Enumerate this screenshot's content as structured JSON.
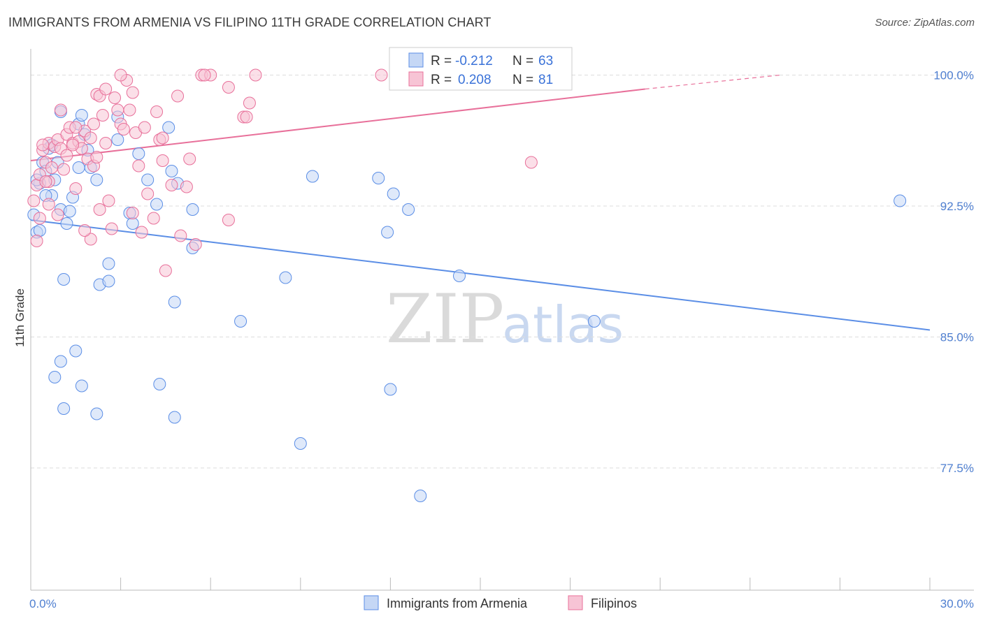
{
  "title": "IMMIGRANTS FROM ARMENIA VS FILIPINO 11TH GRADE CORRELATION CHART",
  "source": "Source: ZipAtlas.com",
  "colors": {
    "blue": "#5b8ee6",
    "blue_fill": "#c5d7f5",
    "pink": "#e8709a",
    "pink_fill": "#f7c4d5",
    "tick_text": "#4f7fd0",
    "grid": "#dddddd"
  },
  "chart_data": {
    "type": "scatter",
    "title": "IMMIGRANTS FROM ARMENIA VS FILIPINO 11TH GRADE CORRELATION CHART",
    "xlabel": "",
    "ylabel": "11th Grade",
    "xlim": [
      0,
      30
    ],
    "ylim": [
      70.5,
      101.5
    ],
    "x_tick_labels": [
      "0.0%",
      "30.0%"
    ],
    "y_ticks": [
      77.5,
      85.0,
      92.5,
      100.0
    ],
    "y_tick_labels": [
      "77.5%",
      "85.0%",
      "92.5%",
      "100.0%"
    ],
    "legend": [
      {
        "label": "R = ",
        "r": "-0.212",
        "n_label": "N = ",
        "n": "63"
      },
      {
        "label": "R = ",
        "r": "0.208",
        "n_label": "N = ",
        "n": "81"
      }
    ],
    "series": [
      {
        "name": "Immigrants from Armenia",
        "color": "#5b8ee6",
        "trend": {
          "x0": 0.0,
          "y0": 91.7,
          "x1": 30.0,
          "y1": 85.4
        },
        "points": [
          [
            0.2,
            91.0
          ],
          [
            0.3,
            93.8
          ],
          [
            0.4,
            95.0
          ],
          [
            0.5,
            94.5
          ],
          [
            0.6,
            95.8
          ],
          [
            0.7,
            96.0
          ],
          [
            0.7,
            93.1
          ],
          [
            0.8,
            94.0
          ],
          [
            0.9,
            95.0
          ],
          [
            1.0,
            97.9
          ],
          [
            1.0,
            92.3
          ],
          [
            1.1,
            88.3
          ],
          [
            1.2,
            91.5
          ],
          [
            1.3,
            92.2
          ],
          [
            1.4,
            93.0
          ],
          [
            1.5,
            84.2
          ],
          [
            1.6,
            97.2
          ],
          [
            1.6,
            94.7
          ],
          [
            1.7,
            97.7
          ],
          [
            1.8,
            96.6
          ],
          [
            1.9,
            95.7
          ],
          [
            2.0,
            94.7
          ],
          [
            2.2,
            94.0
          ],
          [
            2.3,
            88.0
          ],
          [
            2.6,
            88.2
          ],
          [
            2.6,
            89.2
          ],
          [
            2.9,
            96.3
          ],
          [
            2.9,
            97.6
          ],
          [
            3.3,
            92.1
          ],
          [
            3.4,
            91.5
          ],
          [
            3.6,
            95.5
          ],
          [
            3.9,
            94.0
          ],
          [
            4.2,
            92.6
          ],
          [
            4.6,
            97.0
          ],
          [
            4.7,
            94.5
          ],
          [
            4.9,
            93.8
          ],
          [
            4.8,
            87.0
          ],
          [
            5.4,
            92.3
          ],
          [
            5.4,
            90.1
          ],
          [
            7.0,
            85.9
          ],
          [
            8.5,
            88.4
          ],
          [
            9.4,
            94.2
          ],
          [
            11.6,
            94.1
          ],
          [
            12.1,
            93.2
          ],
          [
            12.6,
            92.3
          ],
          [
            11.9,
            91.0
          ],
          [
            14.3,
            88.5
          ],
          [
            18.8,
            85.9
          ],
          [
            29.0,
            92.8
          ],
          [
            0.3,
            91.1
          ],
          [
            0.8,
            82.7
          ],
          [
            1.0,
            83.6
          ],
          [
            1.1,
            80.9
          ],
          [
            1.7,
            82.2
          ],
          [
            2.2,
            80.6
          ],
          [
            4.3,
            82.3
          ],
          [
            4.8,
            80.4
          ],
          [
            9.0,
            78.9
          ],
          [
            12.0,
            82.0
          ],
          [
            13.0,
            75.9
          ],
          [
            0.1,
            92.0
          ],
          [
            0.5,
            93.1
          ],
          [
            0.2,
            94.0
          ]
        ]
      },
      {
        "name": "Filipinos",
        "color": "#e8709a",
        "trend": {
          "x0": 0.0,
          "y0": 95.1,
          "x1": 20.5,
          "y1": 99.2,
          "dash_x1": 25.0,
          "dash_y1": 100.0
        },
        "points": [
          [
            0.1,
            92.8
          ],
          [
            0.2,
            93.7
          ],
          [
            0.3,
            94.3
          ],
          [
            0.4,
            95.7
          ],
          [
            0.5,
            95.0
          ],
          [
            0.6,
            96.1
          ],
          [
            0.6,
            93.9
          ],
          [
            0.7,
            94.7
          ],
          [
            0.8,
            95.9
          ],
          [
            0.9,
            96.3
          ],
          [
            1.0,
            95.8
          ],
          [
            1.1,
            94.6
          ],
          [
            1.2,
            96.6
          ],
          [
            1.3,
            97.0
          ],
          [
            1.4,
            96.1
          ],
          [
            1.5,
            93.5
          ],
          [
            1.6,
            96.2
          ],
          [
            1.7,
            95.8
          ],
          [
            1.8,
            96.8
          ],
          [
            1.9,
            95.2
          ],
          [
            2.0,
            96.4
          ],
          [
            2.1,
            97.2
          ],
          [
            2.1,
            94.8
          ],
          [
            2.2,
            98.9
          ],
          [
            2.3,
            98.8
          ],
          [
            2.4,
            97.7
          ],
          [
            2.5,
            96.1
          ],
          [
            2.6,
            92.8
          ],
          [
            2.7,
            91.2
          ],
          [
            2.8,
            98.7
          ],
          [
            2.9,
            98.0
          ],
          [
            3.0,
            97.2
          ],
          [
            3.1,
            96.9
          ],
          [
            3.2,
            99.7
          ],
          [
            3.3,
            98.0
          ],
          [
            3.4,
            92.1
          ],
          [
            3.5,
            96.7
          ],
          [
            3.6,
            94.8
          ],
          [
            3.8,
            97.0
          ],
          [
            3.9,
            93.2
          ],
          [
            4.1,
            91.8
          ],
          [
            4.2,
            97.9
          ],
          [
            4.3,
            96.3
          ],
          [
            4.4,
            95.1
          ],
          [
            4.5,
            88.8
          ],
          [
            4.9,
            98.8
          ],
          [
            5.0,
            90.8
          ],
          [
            5.2,
            93.6
          ],
          [
            5.3,
            95.2
          ],
          [
            5.5,
            90.3
          ],
          [
            5.7,
            100.0
          ],
          [
            6.0,
            100.0
          ],
          [
            6.6,
            99.3
          ],
          [
            6.6,
            91.7
          ],
          [
            7.1,
            97.6
          ],
          [
            7.3,
            98.4
          ],
          [
            7.5,
            100.0
          ],
          [
            11.7,
            100.0
          ],
          [
            16.7,
            95.0
          ],
          [
            0.2,
            90.5
          ],
          [
            0.4,
            96.0
          ],
          [
            1.5,
            97.0
          ],
          [
            2.5,
            99.2
          ],
          [
            3.4,
            99.0
          ],
          [
            1.0,
            98.0
          ],
          [
            2.0,
            90.6
          ],
          [
            0.9,
            92.0
          ],
          [
            4.4,
            96.4
          ],
          [
            3.7,
            91.0
          ],
          [
            1.2,
            95.4
          ],
          [
            0.3,
            91.8
          ],
          [
            2.3,
            92.3
          ],
          [
            5.8,
            100.0
          ],
          [
            7.2,
            97.6
          ],
          [
            4.7,
            93.7
          ],
          [
            1.8,
            91.1
          ],
          [
            3.0,
            100.0
          ],
          [
            0.6,
            92.6
          ],
          [
            2.2,
            95.3
          ],
          [
            1.4,
            96.0
          ],
          [
            0.5,
            93.9
          ]
        ]
      }
    ]
  },
  "bottom_legend": [
    "Immigrants from Armenia",
    "Filipinos"
  ],
  "watermark": {
    "zip": "ZIP",
    "atlas": "atlas"
  }
}
